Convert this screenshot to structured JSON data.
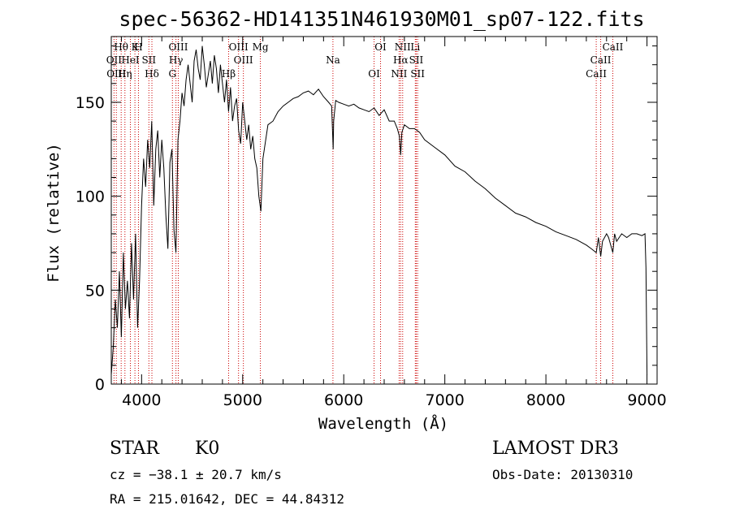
{
  "chart_data": {
    "type": "line",
    "title": "spec-56362-HD141351N461930M01_sp07-122.fits",
    "xlabel": "Wavelength (Å)",
    "ylabel": "Flux (relative)",
    "xlim": [
      3700,
      9100
    ],
    "ylim": [
      0,
      185
    ],
    "x_ticks": [
      4000,
      5000,
      6000,
      7000,
      8000,
      9000
    ],
    "y_ticks": [
      0,
      50,
      100,
      150
    ],
    "series": [
      {
        "name": "flux",
        "x": [
          3700,
          3720,
          3740,
          3760,
          3780,
          3800,
          3820,
          3840,
          3860,
          3880,
          3900,
          3920,
          3940,
          3960,
          3980,
          4000,
          4020,
          4040,
          4060,
          4080,
          4100,
          4120,
          4140,
          4160,
          4180,
          4200,
          4220,
          4240,
          4260,
          4280,
          4300,
          4320,
          4340,
          4360,
          4380,
          4400,
          4420,
          4440,
          4460,
          4480,
          4500,
          4520,
          4540,
          4560,
          4580,
          4600,
          4620,
          4640,
          4660,
          4680,
          4700,
          4720,
          4740,
          4760,
          4780,
          4800,
          4820,
          4840,
          4860,
          4880,
          4900,
          4920,
          4940,
          4960,
          4980,
          5000,
          5020,
          5040,
          5060,
          5080,
          5100,
          5120,
          5140,
          5160,
          5180,
          5200,
          5250,
          5300,
          5350,
          5400,
          5450,
          5500,
          5550,
          5600,
          5650,
          5700,
          5750,
          5800,
          5850,
          5880,
          5895,
          5900,
          5920,
          5950,
          6000,
          6050,
          6100,
          6150,
          6200,
          6250,
          6300,
          6350,
          6400,
          6450,
          6500,
          6530,
          6550,
          6563,
          6575,
          6600,
          6650,
          6700,
          6750,
          6800,
          6900,
          7000,
          7100,
          7200,
          7300,
          7400,
          7500,
          7600,
          7700,
          7800,
          7900,
          8000,
          8100,
          8200,
          8300,
          8400,
          8450,
          8498,
          8520,
          8542,
          8560,
          8600,
          8620,
          8662,
          8680,
          8700,
          8750,
          8800,
          8850,
          8900,
          8950,
          8980,
          8990,
          9000
        ],
        "values": [
          5,
          20,
          45,
          30,
          60,
          25,
          70,
          40,
          55,
          35,
          75,
          45,
          80,
          30,
          55,
          95,
          120,
          105,
          130,
          115,
          140,
          95,
          125,
          135,
          110,
          130,
          115,
          90,
          72,
          118,
          125,
          82,
          70,
          130,
          140,
          155,
          148,
          162,
          170,
          160,
          150,
          172,
          178,
          168,
          162,
          180,
          170,
          158,
          165,
          172,
          160,
          175,
          168,
          155,
          170,
          160,
          150,
          162,
          145,
          158,
          140,
          148,
          152,
          135,
          128,
          150,
          140,
          130,
          138,
          125,
          132,
          120,
          115,
          100,
          92,
          120,
          138,
          140,
          145,
          148,
          150,
          152,
          153,
          155,
          156,
          154,
          157,
          153,
          150,
          148,
          125,
          140,
          151,
          150,
          149,
          148,
          149,
          147,
          146,
          145,
          147,
          143,
          146,
          140,
          140,
          136,
          132,
          122,
          134,
          138,
          136,
          136,
          134,
          130,
          126,
          122,
          116,
          113,
          108,
          104,
          99,
          95,
          91,
          89,
          86,
          84,
          81,
          79,
          77,
          74,
          72,
          70,
          78,
          68,
          76,
          80,
          78,
          70,
          80,
          76,
          80,
          78,
          80,
          80,
          79,
          80,
          62,
          5
        ]
      }
    ],
    "spectral_lines": [
      {
        "label": "Hθ",
        "wavelength": 3798
      },
      {
        "label": "OII",
        "wavelength": 3727
      },
      {
        "label": "OIII",
        "wavelength": 3750
      },
      {
        "label": "K",
        "wavelength": 3934
      },
      {
        "label": "HeI",
        "wavelength": 3889
      },
      {
        "label": "Hη",
        "wavelength": 3835
      },
      {
        "label": "H",
        "wavelength": 3969
      },
      {
        "label": "SII",
        "wavelength": 4072
      },
      {
        "label": "Hδ",
        "wavelength": 4102
      },
      {
        "label": "OIII",
        "wavelength": 4363
      },
      {
        "label": "Hγ",
        "wavelength": 4340
      },
      {
        "label": "G",
        "wavelength": 4305
      },
      {
        "label": "OIII",
        "wavelength": 4959
      },
      {
        "label": "OIII",
        "wavelength": 5007
      },
      {
        "label": "Hβ",
        "wavelength": 4861
      },
      {
        "label": "Mg",
        "wavelength": 5175
      },
      {
        "label": "Na",
        "wavelength": 5893
      },
      {
        "label": "OI",
        "wavelength": 6300
      },
      {
        "label": "OI",
        "wavelength": 6364
      },
      {
        "label": "Hα",
        "wavelength": 6563
      },
      {
        "label": "NII",
        "wavelength": 6548
      },
      {
        "label": "NII",
        "wavelength": 6583
      },
      {
        "label": "SII",
        "wavelength": 6717
      },
      {
        "label": "SII",
        "wavelength": 6731
      },
      {
        "label": "Li",
        "wavelength": 6708
      },
      {
        "label": "CaII",
        "wavelength": 8542
      },
      {
        "label": "CaII",
        "wavelength": 8498
      },
      {
        "label": "CaII",
        "wavelength": 8662
      }
    ],
    "line_color": "#000000",
    "marker_color": "#cc0000"
  },
  "info": {
    "object_class": "STAR",
    "subclass": "K0",
    "survey": "LAMOST DR3",
    "cz": "cz = −38.1 ± 20.7 km/s",
    "obs_date": "Obs-Date: 20130310",
    "coords": "RA = 215.01642, DEC =  44.84312"
  }
}
